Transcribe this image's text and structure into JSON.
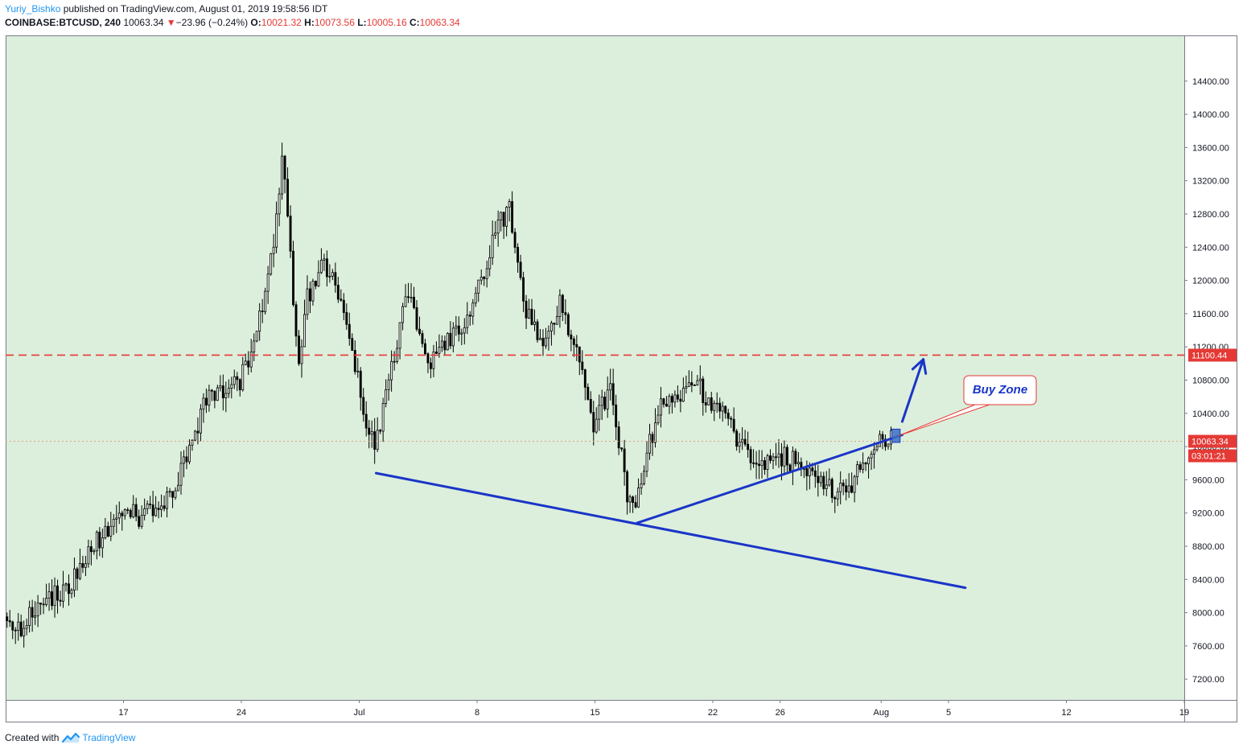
{
  "header": {
    "author": "Yuriy_Bishko",
    "published_text": " published on TradingView.com, August 01, 2019 19:58:56 IDT",
    "symbol": "COINBASE:BTCUSD, 240",
    "last": "10063.34",
    "arrow": "▼",
    "change": "−23.96 (−0.24%)",
    "o_label": "O:",
    "o_value": "10021.32",
    "h_label": "H:",
    "h_value": "10073.56",
    "l_label": "L:",
    "l_value": "10005.16",
    "c_label": "C:",
    "c_value": "10063.34"
  },
  "footer": {
    "created_with": "Created with",
    "brand": "TradingView"
  },
  "colors": {
    "plot_bg": "#dcefdc",
    "candle": "#000000",
    "trendline": "#1a35c8",
    "resistance": "#e53935",
    "price_line": "#e0a080",
    "annotation_text": "#1a35c8"
  },
  "chart_data": {
    "type": "candlestick",
    "symbol": "COINBASE:BTCUSD",
    "interval": "240",
    "y_ticks": [
      "7200.00",
      "7600.00",
      "8000.00",
      "8400.00",
      "8800.00",
      "9200.00",
      "9600.00",
      "10000.00",
      "10400.00",
      "10800.00",
      "11200.00",
      "11600.00",
      "12000.00",
      "12400.00",
      "12800.00",
      "13200.00",
      "13600.00",
      "14000.00",
      "14400.00"
    ],
    "ylim": [
      6950,
      14950
    ],
    "x_ticks": [
      {
        "label": "17",
        "date": "2019-06-17"
      },
      {
        "label": "24",
        "date": "2019-06-24"
      },
      {
        "label": "Jul",
        "date": "2019-07-01"
      },
      {
        "label": "8",
        "date": "2019-07-08"
      },
      {
        "label": "15",
        "date": "2019-07-15"
      },
      {
        "label": "22",
        "date": "2019-07-22"
      },
      {
        "label": "26",
        "date": "2019-07-26"
      },
      {
        "label": "Aug",
        "date": "2019-08-01"
      },
      {
        "label": "5",
        "date": "2019-08-05"
      },
      {
        "label": "12",
        "date": "2019-08-12"
      },
      {
        "label": "19",
        "date": "2019-08-19"
      }
    ],
    "xlim": [
      "2019-06-10T00:00",
      "2019-08-19T00:00"
    ],
    "price_path": [
      [
        "2019-06-10T00:00",
        7950
      ],
      [
        "2019-06-11T00:00",
        7800
      ],
      [
        "2019-06-12T00:00",
        8150
      ],
      [
        "2019-06-13T00:00",
        8200
      ],
      [
        "2019-06-14T00:00",
        8350
      ],
      [
        "2019-06-15T00:00",
        8700
      ],
      [
        "2019-06-16T00:00",
        9000
      ],
      [
        "2019-06-17T00:00",
        9250
      ],
      [
        "2019-06-18T00:00",
        9150
      ],
      [
        "2019-06-19T00:00",
        9250
      ],
      [
        "2019-06-20T00:00",
        9450
      ],
      [
        "2019-06-21T00:00",
        9950
      ],
      [
        "2019-06-22T00:00",
        10600
      ],
      [
        "2019-06-23T00:00",
        10700
      ],
      [
        "2019-06-24T00:00",
        10750
      ],
      [
        "2019-06-25T00:00",
        11400
      ],
      [
        "2019-06-26T00:00",
        12400
      ],
      [
        "2019-06-26T12:00",
        13500
      ],
      [
        "2019-06-27T00:00",
        12300
      ],
      [
        "2019-06-27T12:00",
        10900
      ],
      [
        "2019-06-28T00:00",
        11800
      ],
      [
        "2019-06-29T00:00",
        12200
      ],
      [
        "2019-06-30T00:00",
        11800
      ],
      [
        "2019-07-01T00:00",
        10800
      ],
      [
        "2019-07-02T00:00",
        9900
      ],
      [
        "2019-07-03T00:00",
        11000
      ],
      [
        "2019-07-04T00:00",
        11900
      ],
      [
        "2019-07-05T00:00",
        11000
      ],
      [
        "2019-07-06T00:00",
        11200
      ],
      [
        "2019-07-07T00:00",
        11400
      ],
      [
        "2019-07-08T00:00",
        11800
      ],
      [
        "2019-07-09T00:00",
        12500
      ],
      [
        "2019-07-10T00:00",
        12900
      ],
      [
        "2019-07-10T12:00",
        12200
      ],
      [
        "2019-07-11T00:00",
        11600
      ],
      [
        "2019-07-12T00:00",
        11300
      ],
      [
        "2019-07-13T00:00",
        11700
      ],
      [
        "2019-07-14T00:00",
        11100
      ],
      [
        "2019-07-15T00:00",
        10300
      ],
      [
        "2019-07-16T00:00",
        10700
      ],
      [
        "2019-07-17T00:00",
        9450
      ],
      [
        "2019-07-17T12:00",
        9200
      ],
      [
        "2019-07-18T00:00",
        9800
      ],
      [
        "2019-07-19T00:00",
        10500
      ],
      [
        "2019-07-20T00:00",
        10600
      ],
      [
        "2019-07-21T00:00",
        10800
      ],
      [
        "2019-07-22T00:00",
        10500
      ],
      [
        "2019-07-23T00:00",
        10300
      ],
      [
        "2019-07-24T00:00",
        9950
      ],
      [
        "2019-07-25T00:00",
        9750
      ],
      [
        "2019-07-26T00:00",
        9900
      ],
      [
        "2019-07-27T00:00",
        9800
      ],
      [
        "2019-07-28T00:00",
        9600
      ],
      [
        "2019-07-29T00:00",
        9500
      ],
      [
        "2019-07-30T00:00",
        9450
      ],
      [
        "2019-07-31T00:00",
        9800
      ],
      [
        "2019-08-01T00:00",
        10050
      ],
      [
        "2019-08-01T12:00",
        10063
      ]
    ],
    "lines": [
      {
        "name": "resistance",
        "style": "dashed",
        "y": 11100.44
      },
      {
        "name": "last-price",
        "style": "dotted",
        "y": 10063.34
      },
      {
        "name": "support-down",
        "from": [
          "2019-07-02T00:00",
          9680
        ],
        "to": [
          "2019-08-06T00:00",
          8300
        ]
      },
      {
        "name": "support-up",
        "from": [
          "2019-07-17T12:00",
          9080
        ],
        "to": [
          "2019-08-02T06:00",
          10140
        ]
      },
      {
        "name": "projection",
        "from": [
          "2019-08-02T06:00",
          10300
        ],
        "to": [
          "2019-08-03T12:00",
          11050
        ]
      }
    ],
    "buy_zone": {
      "t0": "2019-08-01T15:00",
      "t1": "2019-08-02T03:00",
      "y0": 10050,
      "y1": 10210
    },
    "price_labels": {
      "resistance": "11100.44",
      "last": "10063.34",
      "countdown": "03:01:21"
    },
    "annotation": "Buy Zone"
  }
}
